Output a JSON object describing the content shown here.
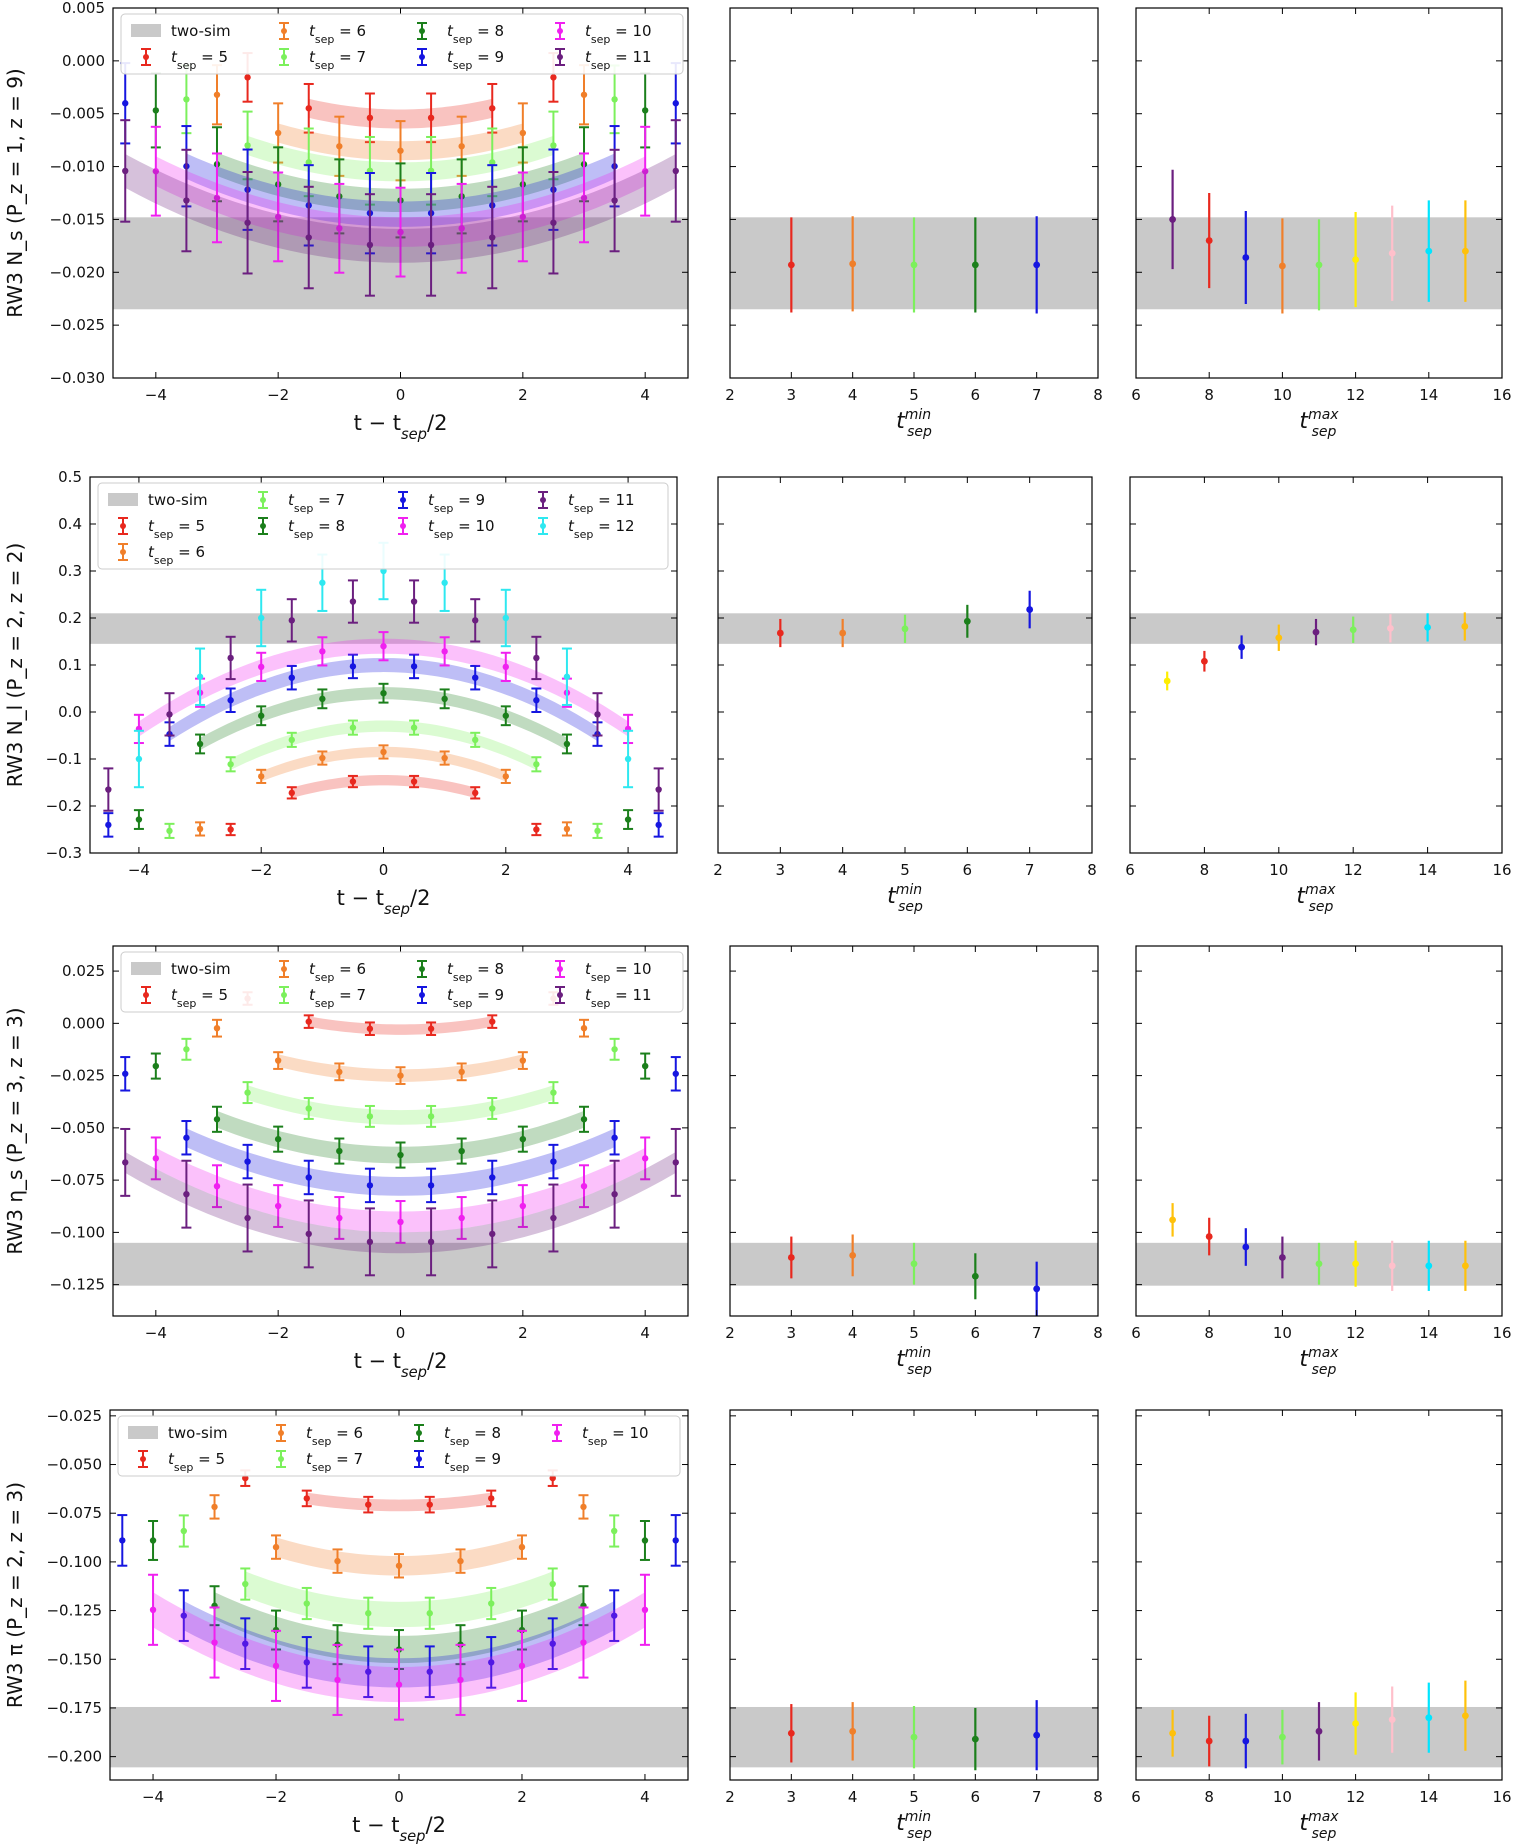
{
  "colors": {
    "two_sim": "#c9c9c9",
    "5": "#e8281e",
    "6": "#f07f2a",
    "7": "#7cf05c",
    "8": "#1b7f1b",
    "9": "#1616e0",
    "10": "#f020f0",
    "11": "#6b1f7f",
    "12": "#2ee8f0",
    "13": "#ffc0cb",
    "14": "#00e5ff",
    "15": "#ffc10a",
    "yellow": "#ffee00"
  },
  "column_labels": {
    "main_x": "t − t_sep/2",
    "min_x": "t_sep^min",
    "max_x": "t_sep^max"
  },
  "chart_data": [
    {
      "type": "scatter",
      "panel": "row1-main",
      "ylabel": "R^{W3}_{N_s}(P_z = 1, z = 9)",
      "xlabel": "t − t_sep/2",
      "xlim": [
        -4.7,
        4.7
      ],
      "ylim": [
        -0.03,
        0.005
      ],
      "xticks": [
        -4,
        -2,
        0,
        2,
        4
      ],
      "yticks": [
        -0.03,
        -0.025,
        -0.02,
        -0.015,
        -0.01,
        -0.005,
        0.0,
        0.005
      ],
      "ytick_labels": [
        "−0.030",
        "−0.025",
        "−0.020",
        "−0.015",
        "−0.010",
        "−0.005",
        "0.000",
        "0.005"
      ],
      "band": {
        "name": "two-sim",
        "low": -0.0235,
        "high": -0.0148
      },
      "legend": [
        {
          "label": "two-sim",
          "key": "two_sim"
        },
        {
          "label": "t_sep = 6",
          "key": "6"
        },
        {
          "label": "t_sep = 8",
          "key": "8"
        },
        {
          "label": "t_sep = 10",
          "key": "10"
        },
        {
          "label": "t_sep = 5",
          "key": "5"
        },
        {
          "label": "t_sep = 7",
          "key": "7"
        },
        {
          "label": "t_sep = 9",
          "key": "9"
        },
        {
          "label": "t_sep = 11",
          "key": "11"
        }
      ],
      "series": [
        {
          "tsep": 5,
          "center": -0.0055,
          "curv": 0.00045,
          "width": 0.0018,
          "err": 0.0023
        },
        {
          "tsep": 6,
          "center": -0.0085,
          "curv": 0.00042,
          "width": 0.0018,
          "err": 0.0028
        },
        {
          "tsep": 7,
          "center": -0.0105,
          "curv": 0.0004,
          "width": 0.0018,
          "err": 0.0032
        },
        {
          "tsep": 8,
          "center": -0.0132,
          "curv": 0.00038,
          "width": 0.0022,
          "err": 0.0035
        },
        {
          "tsep": 9,
          "center": -0.0145,
          "curv": 0.00037,
          "width": 0.0024,
          "err": 0.0038
        },
        {
          "tsep": 10,
          "center": -0.0162,
          "curv": 0.00036,
          "width": 0.0028,
          "err": 0.0042
        },
        {
          "tsep": 11,
          "center": -0.0175,
          "curv": 0.00035,
          "width": 0.0032,
          "err": 0.0048
        }
      ]
    },
    {
      "type": "scatter",
      "panel": "row2-main",
      "ylabel": "R^{W3}_{N_l}(P_z = 2, z = 2)",
      "xlabel": "t − t_sep/2",
      "xlim": [
        -4.8,
        4.8
      ],
      "ylim": [
        -0.3,
        0.5
      ],
      "xticks": [
        -4,
        -2,
        0,
        2,
        4
      ],
      "yticks": [
        -0.3,
        -0.2,
        -0.1,
        0.0,
        0.1,
        0.2,
        0.3,
        0.4,
        0.5
      ],
      "ytick_labels": [
        "−0.3",
        "−0.2",
        "−0.1",
        "0.0",
        "0.1",
        "0.2",
        "0.3",
        "0.4",
        "0.5"
      ],
      "band": {
        "name": "two-sim",
        "low": 0.145,
        "high": 0.21
      },
      "legend": [
        {
          "label": "two-sim",
          "key": "two_sim"
        },
        {
          "label": "t_sep = 7",
          "key": "7"
        },
        {
          "label": "t_sep = 9",
          "key": "9"
        },
        {
          "label": "t_sep = 11",
          "key": "11"
        },
        {
          "label": "t_sep = 5",
          "key": "5"
        },
        {
          "label": "t_sep = 8",
          "key": "8"
        },
        {
          "label": "t_sep = 10",
          "key": "10"
        },
        {
          "label": "t_sep = 12",
          "key": "12"
        },
        {
          "label": "t_sep = 6",
          "key": "6"
        }
      ],
      "series": [
        {
          "tsep": 5,
          "center": -0.145,
          "curv": -0.012,
          "width": 0.022,
          "err": 0.012
        },
        {
          "tsep": 6,
          "center": -0.085,
          "curv": -0.013,
          "width": 0.022,
          "err": 0.014
        },
        {
          "tsep": 7,
          "center": -0.03,
          "curv": -0.013,
          "width": 0.024,
          "err": 0.015
        },
        {
          "tsep": 8,
          "center": 0.04,
          "curv": -0.012,
          "width": 0.026,
          "err": 0.02
        },
        {
          "tsep": 9,
          "center": 0.1,
          "curv": -0.012,
          "width": 0.03,
          "err": 0.025
        },
        {
          "tsep": 10,
          "center": 0.14,
          "curv": -0.011,
          "width": 0.032,
          "err": 0.03
        },
        {
          "tsep": 11,
          "center": 0.24,
          "curv": -0.02,
          "width": 0.0,
          "err": 0.045
        },
        {
          "tsep": 12,
          "center": 0.3,
          "curv": -0.025,
          "width": 0.0,
          "err": 0.06
        }
      ]
    },
    {
      "type": "scatter",
      "panel": "row3-main",
      "ylabel": "R^{W3}_{η_s}(P_z = 3, z = 3)",
      "xlabel": "t − t_sep/2",
      "xlim": [
        -4.7,
        4.7
      ],
      "ylim": [
        -0.14,
        0.037
      ],
      "xticks": [
        -4,
        -2,
        0,
        2,
        4
      ],
      "yticks": [
        -0.125,
        -0.1,
        -0.075,
        -0.05,
        -0.025,
        0.0,
        0.025
      ],
      "ytick_labels": [
        "−0.125",
        "−0.100",
        "−0.075",
        "−0.050",
        "−0.025",
        "0.000",
        "0.025"
      ],
      "band": {
        "name": "two-sim",
        "low": -0.1255,
        "high": -0.105
      },
      "legend": [
        {
          "label": "two-sim",
          "key": "two_sim"
        },
        {
          "label": "t_sep = 6",
          "key": "6"
        },
        {
          "label": "t_sep = 8",
          "key": "8"
        },
        {
          "label": "t_sep = 10",
          "key": "10"
        },
        {
          "label": "t_sep = 5",
          "key": "5"
        },
        {
          "label": "t_sep = 7",
          "key": "7"
        },
        {
          "label": "t_sep = 9",
          "key": "9"
        },
        {
          "label": "t_sep = 11",
          "key": "11"
        }
      ],
      "series": [
        {
          "tsep": 5,
          "center": -0.003,
          "curv": 0.0017,
          "width": 0.005,
          "err": 0.003
        },
        {
          "tsep": 6,
          "center": -0.025,
          "curv": 0.0018,
          "width": 0.006,
          "err": 0.004
        },
        {
          "tsep": 7,
          "center": -0.045,
          "curv": 0.0019,
          "width": 0.007,
          "err": 0.005
        },
        {
          "tsep": 8,
          "center": -0.063,
          "curv": 0.0019,
          "width": 0.008,
          "err": 0.006
        },
        {
          "tsep": 9,
          "center": -0.078,
          "curv": 0.0019,
          "width": 0.009,
          "err": 0.008
        },
        {
          "tsep": 10,
          "center": -0.095,
          "curv": 0.0019,
          "width": 0.01,
          "err": 0.01
        },
        {
          "tsep": 11,
          "center": -0.105,
          "curv": 0.0019,
          "width": 0.01,
          "err": 0.016
        }
      ]
    },
    {
      "type": "scatter",
      "panel": "row4-main",
      "ylabel": "R^{W3}_{π}(P_z = 2, z = 3)",
      "xlabel": "t − t_sep/2",
      "xlim": [
        -4.7,
        4.7
      ],
      "ylim": [
        -0.212,
        -0.022
      ],
      "xticks": [
        -4,
        -2,
        0,
        2,
        4
      ],
      "yticks": [
        -0.2,
        -0.175,
        -0.15,
        -0.125,
        -0.1,
        -0.075,
        -0.05,
        -0.025
      ],
      "ytick_labels": [
        "−0.200",
        "−0.175",
        "−0.150",
        "−0.125",
        "−0.100",
        "−0.075",
        "−0.050",
        "−0.025"
      ],
      "band": {
        "name": "two-sim",
        "low": -0.2055,
        "high": -0.1745
      },
      "legend": [
        {
          "label": "two-sim",
          "key": "two_sim"
        },
        {
          "label": "t_sep = 6",
          "key": "6"
        },
        {
          "label": "t_sep = 8",
          "key": "8"
        },
        {
          "label": "t_sep = 10",
          "key": "10"
        },
        {
          "label": "t_sep = 5",
          "key": "5"
        },
        {
          "label": "t_sep = 7",
          "key": "7"
        },
        {
          "label": "t_sep = 9",
          "key": "9"
        }
      ],
      "series": [
        {
          "tsep": 5,
          "center": -0.071,
          "curv": 0.0016,
          "width": 0.006,
          "err": 0.004
        },
        {
          "tsep": 6,
          "center": -0.102,
          "curv": 0.0024,
          "width": 0.01,
          "err": 0.006
        },
        {
          "tsep": 7,
          "center": -0.127,
          "curv": 0.0025,
          "width": 0.013,
          "err": 0.008
        },
        {
          "tsep": 8,
          "center": -0.145,
          "curv": 0.0025,
          "width": 0.014,
          "err": 0.01
        },
        {
          "tsep": 9,
          "center": -0.157,
          "curv": 0.0024,
          "width": 0.015,
          "err": 0.013
        },
        {
          "tsep": 10,
          "center": -0.163,
          "curv": 0.0024,
          "width": 0.018,
          "err": 0.018
        }
      ]
    },
    {
      "type": "scatter",
      "panel": "row1-min",
      "xlabel": "t_sep^min",
      "xlim": [
        2,
        8
      ],
      "xticks": [
        2,
        3,
        4,
        5,
        6,
        7,
        8
      ],
      "points": [
        {
          "x": 3,
          "y": -0.0193,
          "err": 0.0045,
          "key": "5"
        },
        {
          "x": 4,
          "y": -0.0192,
          "err": 0.0045,
          "key": "6"
        },
        {
          "x": 5,
          "y": -0.0193,
          "err": 0.0045,
          "key": "7"
        },
        {
          "x": 6,
          "y": -0.0193,
          "err": 0.0045,
          "key": "8"
        },
        {
          "x": 7,
          "y": -0.0193,
          "err": 0.0046,
          "key": "9"
        }
      ]
    },
    {
      "type": "scatter",
      "panel": "row1-max",
      "xlabel": "t_sep^max",
      "xlim": [
        6,
        16
      ],
      "xticks": [
        6,
        8,
        10,
        12,
        14,
        16
      ],
      "points": [
        {
          "x": 7,
          "y": -0.015,
          "err": 0.0047,
          "key": "11"
        },
        {
          "x": 8,
          "y": -0.017,
          "err": 0.0045,
          "key": "5"
        },
        {
          "x": 9,
          "y": -0.0186,
          "err": 0.0044,
          "key": "9"
        },
        {
          "x": 10,
          "y": -0.0194,
          "err": 0.0045,
          "key": "6"
        },
        {
          "x": 11,
          "y": -0.0193,
          "err": 0.0043,
          "key": "7"
        },
        {
          "x": 12,
          "y": -0.0188,
          "err": 0.0045,
          "key": "yellow"
        },
        {
          "x": 13,
          "y": -0.0182,
          "err": 0.0045,
          "key": "13"
        },
        {
          "x": 14,
          "y": -0.018,
          "err": 0.0048,
          "key": "14"
        },
        {
          "x": 15,
          "y": -0.018,
          "err": 0.0048,
          "key": "15"
        }
      ]
    },
    {
      "type": "scatter",
      "panel": "row2-min",
      "xlabel": "t_sep^min",
      "xlim": [
        2,
        8
      ],
      "xticks": [
        2,
        3,
        4,
        5,
        6,
        7,
        8
      ],
      "points": [
        {
          "x": 3,
          "y": 0.168,
          "err": 0.03,
          "key": "5"
        },
        {
          "x": 4,
          "y": 0.168,
          "err": 0.03,
          "key": "6"
        },
        {
          "x": 5,
          "y": 0.177,
          "err": 0.03,
          "key": "7"
        },
        {
          "x": 6,
          "y": 0.193,
          "err": 0.035,
          "key": "8"
        },
        {
          "x": 7,
          "y": 0.218,
          "err": 0.04,
          "key": "9"
        }
      ]
    },
    {
      "type": "scatter",
      "panel": "row2-max",
      "xlabel": "t_sep^max",
      "xlim": [
        6,
        16
      ],
      "xticks": [
        6,
        8,
        10,
        12,
        14,
        16
      ],
      "points": [
        {
          "x": 7,
          "y": 0.066,
          "err": 0.02,
          "key": "yellow"
        },
        {
          "x": 8,
          "y": 0.108,
          "err": 0.022,
          "key": "5"
        },
        {
          "x": 9,
          "y": 0.138,
          "err": 0.025,
          "key": "9"
        },
        {
          "x": 10,
          "y": 0.158,
          "err": 0.028,
          "key": "15"
        },
        {
          "x": 11,
          "y": 0.17,
          "err": 0.028,
          "key": "11"
        },
        {
          "x": 12,
          "y": 0.175,
          "err": 0.028,
          "key": "7"
        },
        {
          "x": 13,
          "y": 0.178,
          "err": 0.03,
          "key": "13"
        },
        {
          "x": 14,
          "y": 0.18,
          "err": 0.03,
          "key": "14"
        },
        {
          "x": 15,
          "y": 0.182,
          "err": 0.03,
          "key": "15"
        }
      ]
    },
    {
      "type": "scatter",
      "panel": "row3-min",
      "xlabel": "t_sep^min",
      "xlim": [
        2,
        8
      ],
      "xticks": [
        2,
        3,
        4,
        5,
        6,
        7,
        8
      ],
      "points": [
        {
          "x": 3,
          "y": -0.112,
          "err": 0.01,
          "key": "5"
        },
        {
          "x": 4,
          "y": -0.111,
          "err": 0.01,
          "key": "6"
        },
        {
          "x": 5,
          "y": -0.115,
          "err": 0.01,
          "key": "7"
        },
        {
          "x": 6,
          "y": -0.121,
          "err": 0.011,
          "key": "8"
        },
        {
          "x": 7,
          "y": -0.127,
          "err": 0.013,
          "key": "9"
        }
      ]
    },
    {
      "type": "scatter",
      "panel": "row3-max",
      "xlabel": "t_sep^max",
      "xlim": [
        6,
        16
      ],
      "xticks": [
        6,
        8,
        10,
        12,
        14,
        16
      ],
      "points": [
        {
          "x": 7,
          "y": -0.094,
          "err": 0.008,
          "key": "15"
        },
        {
          "x": 8,
          "y": -0.102,
          "err": 0.009,
          "key": "5"
        },
        {
          "x": 9,
          "y": -0.107,
          "err": 0.009,
          "key": "9"
        },
        {
          "x": 10,
          "y": -0.112,
          "err": 0.01,
          "key": "11"
        },
        {
          "x": 11,
          "y": -0.115,
          "err": 0.01,
          "key": "7"
        },
        {
          "x": 12,
          "y": -0.115,
          "err": 0.011,
          "key": "yellow"
        },
        {
          "x": 13,
          "y": -0.116,
          "err": 0.012,
          "key": "13"
        },
        {
          "x": 14,
          "y": -0.116,
          "err": 0.012,
          "key": "14"
        },
        {
          "x": 15,
          "y": -0.116,
          "err": 0.012,
          "key": "15"
        }
      ]
    },
    {
      "type": "scatter",
      "panel": "row4-min",
      "xlabel": "t_sep^min",
      "xlim": [
        2,
        8
      ],
      "xticks": [
        2,
        3,
        4,
        5,
        6,
        7,
        8
      ],
      "points": [
        {
          "x": 3,
          "y": -0.188,
          "err": 0.015,
          "key": "5"
        },
        {
          "x": 4,
          "y": -0.187,
          "err": 0.015,
          "key": "6"
        },
        {
          "x": 5,
          "y": -0.19,
          "err": 0.016,
          "key": "7"
        },
        {
          "x": 6,
          "y": -0.191,
          "err": 0.016,
          "key": "8"
        },
        {
          "x": 7,
          "y": -0.189,
          "err": 0.018,
          "key": "9"
        }
      ]
    },
    {
      "type": "scatter",
      "panel": "row4-max",
      "xlabel": "t_sep^max",
      "xlim": [
        6,
        16
      ],
      "xticks": [
        6,
        8,
        10,
        12,
        14,
        16
      ],
      "points": [
        {
          "x": 7,
          "y": -0.188,
          "err": 0.012,
          "key": "15"
        },
        {
          "x": 8,
          "y": -0.192,
          "err": 0.013,
          "key": "5"
        },
        {
          "x": 9,
          "y": -0.192,
          "err": 0.014,
          "key": "9"
        },
        {
          "x": 10,
          "y": -0.19,
          "err": 0.014,
          "key": "7"
        },
        {
          "x": 11,
          "y": -0.187,
          "err": 0.015,
          "key": "11"
        },
        {
          "x": 12,
          "y": -0.183,
          "err": 0.016,
          "key": "yellow"
        },
        {
          "x": 13,
          "y": -0.181,
          "err": 0.017,
          "key": "13"
        },
        {
          "x": 14,
          "y": -0.18,
          "err": 0.018,
          "key": "14"
        },
        {
          "x": 15,
          "y": -0.179,
          "err": 0.018,
          "key": "15"
        }
      ]
    }
  ]
}
